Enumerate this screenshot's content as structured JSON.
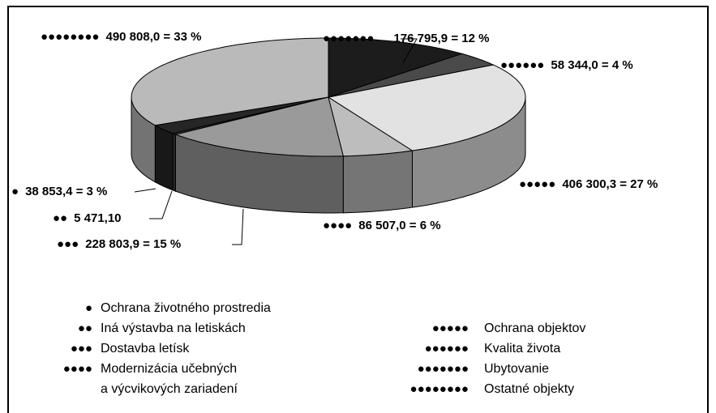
{
  "chart_data": {
    "type": "pie3d",
    "categories": [
      "Ochrana životného prostredia",
      "Iná výstavba na letiskách",
      "Dostavba letísk",
      "Modernizácia učebných\na výcvikových zariadení",
      "Ochrana objektov",
      "Kvalita života",
      "Ubytovanie",
      "Ostatné objekty"
    ],
    "markers": [
      "●",
      "●●",
      "●●●",
      "●●●●",
      "●●●●●",
      "●●●●●●",
      "●●●●●●●",
      "●●●●●●●●"
    ],
    "values": [
      38853.4,
      5471.1,
      228803.9,
      86507.0,
      406300.3,
      58344.0,
      176795.9,
      490808.0
    ],
    "value_labels": [
      "38 853,4 = 3 %",
      "5 471,10",
      "228 803,9 = 15 %",
      "86 507,0 = 6 %",
      "406 300,3 = 27 %",
      "58 344,0 = 4 %",
      "176 795,9 = 12 %",
      "490 808,0 = 33 %"
    ],
    "colors": [
      "#262626",
      "#3a3a3a",
      "#9a9a9a",
      "#bdbdbd",
      "#e2e2e2",
      "#4a4a4a",
      "#1c1c1c",
      "#bababa"
    ]
  }
}
